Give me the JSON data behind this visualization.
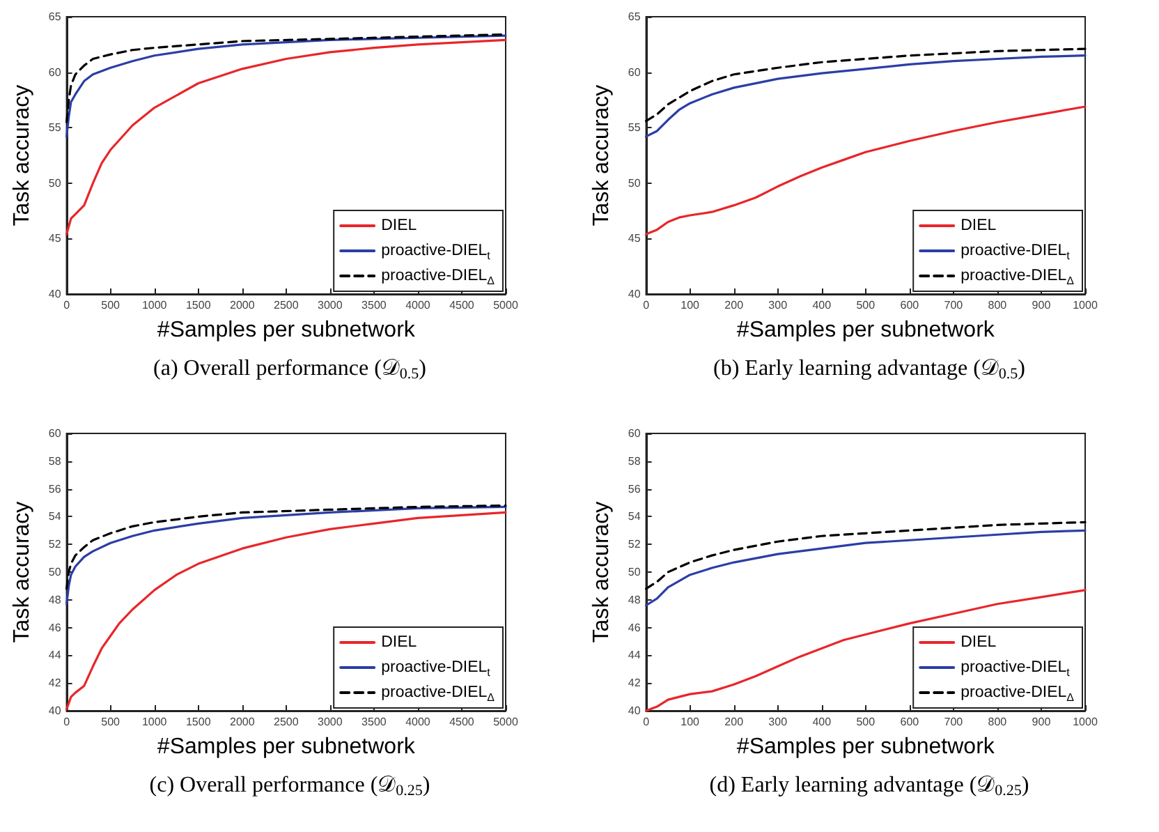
{
  "chart_data": [
    {
      "type": "line",
      "title": "(a) Overall performance (𝒟$_{0.5}$)",
      "xlabel": "#Samples per subnetwork",
      "ylabel": "Task accuracy",
      "xlim": [
        0,
        5000
      ],
      "xticks": [
        0,
        500,
        1000,
        1500,
        2000,
        2500,
        3000,
        3500,
        4000,
        4500,
        5000
      ],
      "ylim": [
        40,
        65
      ],
      "yticks": [
        40,
        45,
        50,
        55,
        60,
        65
      ],
      "grid": false,
      "legend": "bottom right",
      "marker": "none",
      "series": [
        {
          "name": "DIEL",
          "color": "#e8262a",
          "line_style": "solid",
          "x": [
            0,
            50,
            100,
            200,
            300,
            400,
            500,
            750,
            1000,
            1500,
            2000,
            2500,
            3000,
            3500,
            4000,
            4500,
            5000
          ],
          "values": [
            45.4,
            46.8,
            47.2,
            48,
            50,
            51.8,
            53,
            55.2,
            56.8,
            59,
            60.3,
            61.2,
            61.8,
            62.2,
            62.5,
            62.7,
            62.9
          ]
        },
        {
          "name": "proactive-DIEL$_{t}$",
          "color": "#2b3ea6",
          "line_style": "solid",
          "x": [
            0,
            25,
            50,
            100,
            200,
            300,
            500,
            750,
            1000,
            1500,
            2000,
            3000,
            4000,
            5000
          ],
          "values": [
            54.2,
            56,
            57.3,
            58,
            59.2,
            59.8,
            60.4,
            61,
            61.5,
            62.1,
            62.5,
            62.9,
            63.1,
            63.3
          ]
        },
        {
          "name": "proactive-DIEL$_{Δ}$",
          "color": "#000000",
          "line_style": "dashed",
          "x": [
            0,
            25,
            50,
            100,
            200,
            300,
            500,
            750,
            1000,
            1500,
            2000,
            3000,
            4000,
            5000
          ],
          "values": [
            55.5,
            57.5,
            58.8,
            59.8,
            60.6,
            61.2,
            61.6,
            62,
            62.2,
            62.5,
            62.8,
            63,
            63.2,
            63.4
          ]
        }
      ]
    },
    {
      "type": "line",
      "title": "(b) Early learning advantage (𝒟$_{0.5}$)",
      "xlabel": "#Samples per subnetwork",
      "ylabel": "Task accuracy",
      "xlim": [
        0,
        1000
      ],
      "xticks": [
        0,
        100,
        200,
        300,
        400,
        500,
        600,
        700,
        800,
        900,
        1000
      ],
      "ylim": [
        40,
        65
      ],
      "yticks": [
        40,
        45,
        50,
        55,
        60,
        65
      ],
      "grid": false,
      "legend": "bottom right",
      "marker": "none",
      "series": [
        {
          "name": "DIEL",
          "color": "#e8262a",
          "line_style": "solid",
          "x": [
            0,
            25,
            50,
            75,
            100,
            150,
            200,
            250,
            300,
            350,
            400,
            450,
            500,
            600,
            700,
            800,
            900,
            1000
          ],
          "values": [
            45.4,
            45.8,
            46.5,
            46.9,
            47.1,
            47.4,
            48,
            48.7,
            49.7,
            50.6,
            51.4,
            52.1,
            52.8,
            53.8,
            54.7,
            55.5,
            56.2,
            56.9
          ]
        },
        {
          "name": "proactive-DIEL$_{t}$",
          "color": "#2b3ea6",
          "line_style": "solid",
          "x": [
            0,
            25,
            50,
            75,
            100,
            150,
            200,
            300,
            400,
            500,
            600,
            700,
            800,
            900,
            1000
          ],
          "values": [
            54.2,
            54.7,
            55.7,
            56.6,
            57.2,
            58,
            58.6,
            59.4,
            59.9,
            60.3,
            60.7,
            61,
            61.2,
            61.4,
            61.5
          ]
        },
        {
          "name": "proactive-DIEL$_{Δ}$",
          "color": "#000000",
          "line_style": "dashed",
          "x": [
            0,
            25,
            50,
            100,
            150,
            200,
            300,
            400,
            500,
            600,
            700,
            800,
            900,
            1000
          ],
          "values": [
            55.6,
            56.2,
            57.1,
            58.3,
            59.2,
            59.8,
            60.4,
            60.9,
            61.2,
            61.5,
            61.7,
            61.9,
            62,
            62.1
          ]
        }
      ]
    },
    {
      "type": "line",
      "title": "(c) Overall performance (𝒟$_{0.25}$)",
      "xlabel": "#Samples per subnetwork",
      "ylabel": "Task accuracy",
      "xlim": [
        0,
        5000
      ],
      "xticks": [
        0,
        500,
        1000,
        1500,
        2000,
        2500,
        3000,
        3500,
        4000,
        4500,
        5000
      ],
      "ylim": [
        40,
        60
      ],
      "yticks": [
        40,
        42,
        44,
        46,
        48,
        50,
        52,
        54,
        56,
        58,
        60
      ],
      "grid": false,
      "legend": "bottom right",
      "marker": "none",
      "series": [
        {
          "name": "DIEL",
          "color": "#e8262a",
          "line_style": "solid",
          "x": [
            0,
            50,
            100,
            200,
            300,
            400,
            500,
            600,
            750,
            1000,
            1250,
            1500,
            2000,
            2500,
            3000,
            3500,
            4000,
            4500,
            5000
          ],
          "values": [
            40.1,
            41,
            41.3,
            41.8,
            43.2,
            44.5,
            45.4,
            46.3,
            47.3,
            48.7,
            49.8,
            50.6,
            51.7,
            52.5,
            53.1,
            53.5,
            53.9,
            54.1,
            54.3
          ]
        },
        {
          "name": "proactive-DIEL$_{t}$",
          "color": "#2b3ea6",
          "line_style": "solid",
          "x": [
            0,
            25,
            50,
            100,
            200,
            300,
            500,
            750,
            1000,
            1500,
            2000,
            2500,
            3000,
            4000,
            5000
          ],
          "values": [
            47.7,
            49,
            49.8,
            50.4,
            51.1,
            51.5,
            52.1,
            52.6,
            53,
            53.5,
            53.9,
            54.1,
            54.3,
            54.6,
            54.7
          ]
        },
        {
          "name": "proactive-DIEL$_{Δ}$",
          "color": "#000000",
          "line_style": "dashed",
          "x": [
            0,
            25,
            50,
            100,
            200,
            300,
            500,
            750,
            1000,
            1500,
            2000,
            3000,
            4000,
            5000
          ],
          "values": [
            48.8,
            50,
            50.6,
            51.2,
            51.8,
            52.3,
            52.8,
            53.3,
            53.6,
            54,
            54.3,
            54.5,
            54.7,
            54.8
          ]
        }
      ]
    },
    {
      "type": "line",
      "title": "(d) Early learning advantage (𝒟$_{0.25}$)",
      "xlabel": "#Samples per subnetwork",
      "ylabel": "Task accuracy",
      "xlim": [
        0,
        1000
      ],
      "xticks": [
        0,
        100,
        200,
        300,
        400,
        500,
        600,
        700,
        800,
        900,
        1000
      ],
      "ylim": [
        40,
        60
      ],
      "yticks": [
        40,
        42,
        44,
        46,
        48,
        50,
        52,
        54,
        56,
        58,
        60
      ],
      "grid": false,
      "legend": "bottom right",
      "marker": "none",
      "series": [
        {
          "name": "DIEL",
          "color": "#e8262a",
          "line_style": "solid",
          "x": [
            0,
            25,
            50,
            75,
            100,
            150,
            200,
            250,
            300,
            350,
            400,
            450,
            500,
            600,
            700,
            800,
            900,
            1000
          ],
          "values": [
            40,
            40.3,
            40.8,
            41,
            41.2,
            41.4,
            41.9,
            42.5,
            43.2,
            43.9,
            44.5,
            45.1,
            45.5,
            46.3,
            47,
            47.7,
            48.2,
            48.7
          ]
        },
        {
          "name": "proactive-DIEL$_{t}$",
          "color": "#2b3ea6",
          "line_style": "solid",
          "x": [
            0,
            25,
            50,
            100,
            150,
            200,
            300,
            400,
            500,
            600,
            700,
            800,
            900,
            1000
          ],
          "values": [
            47.6,
            48.1,
            48.9,
            49.8,
            50.3,
            50.7,
            51.3,
            51.7,
            52.1,
            52.3,
            52.5,
            52.7,
            52.9,
            53
          ]
        },
        {
          "name": "proactive-DIEL$_{Δ}$",
          "color": "#000000",
          "line_style": "dashed",
          "x": [
            0,
            25,
            50,
            100,
            150,
            200,
            300,
            400,
            500,
            600,
            700,
            800,
            900,
            1000
          ],
          "values": [
            48.8,
            49.3,
            50,
            50.7,
            51.2,
            51.6,
            52.2,
            52.6,
            52.8,
            53,
            53.2,
            53.4,
            53.5,
            53.6
          ]
        }
      ]
    }
  ]
}
